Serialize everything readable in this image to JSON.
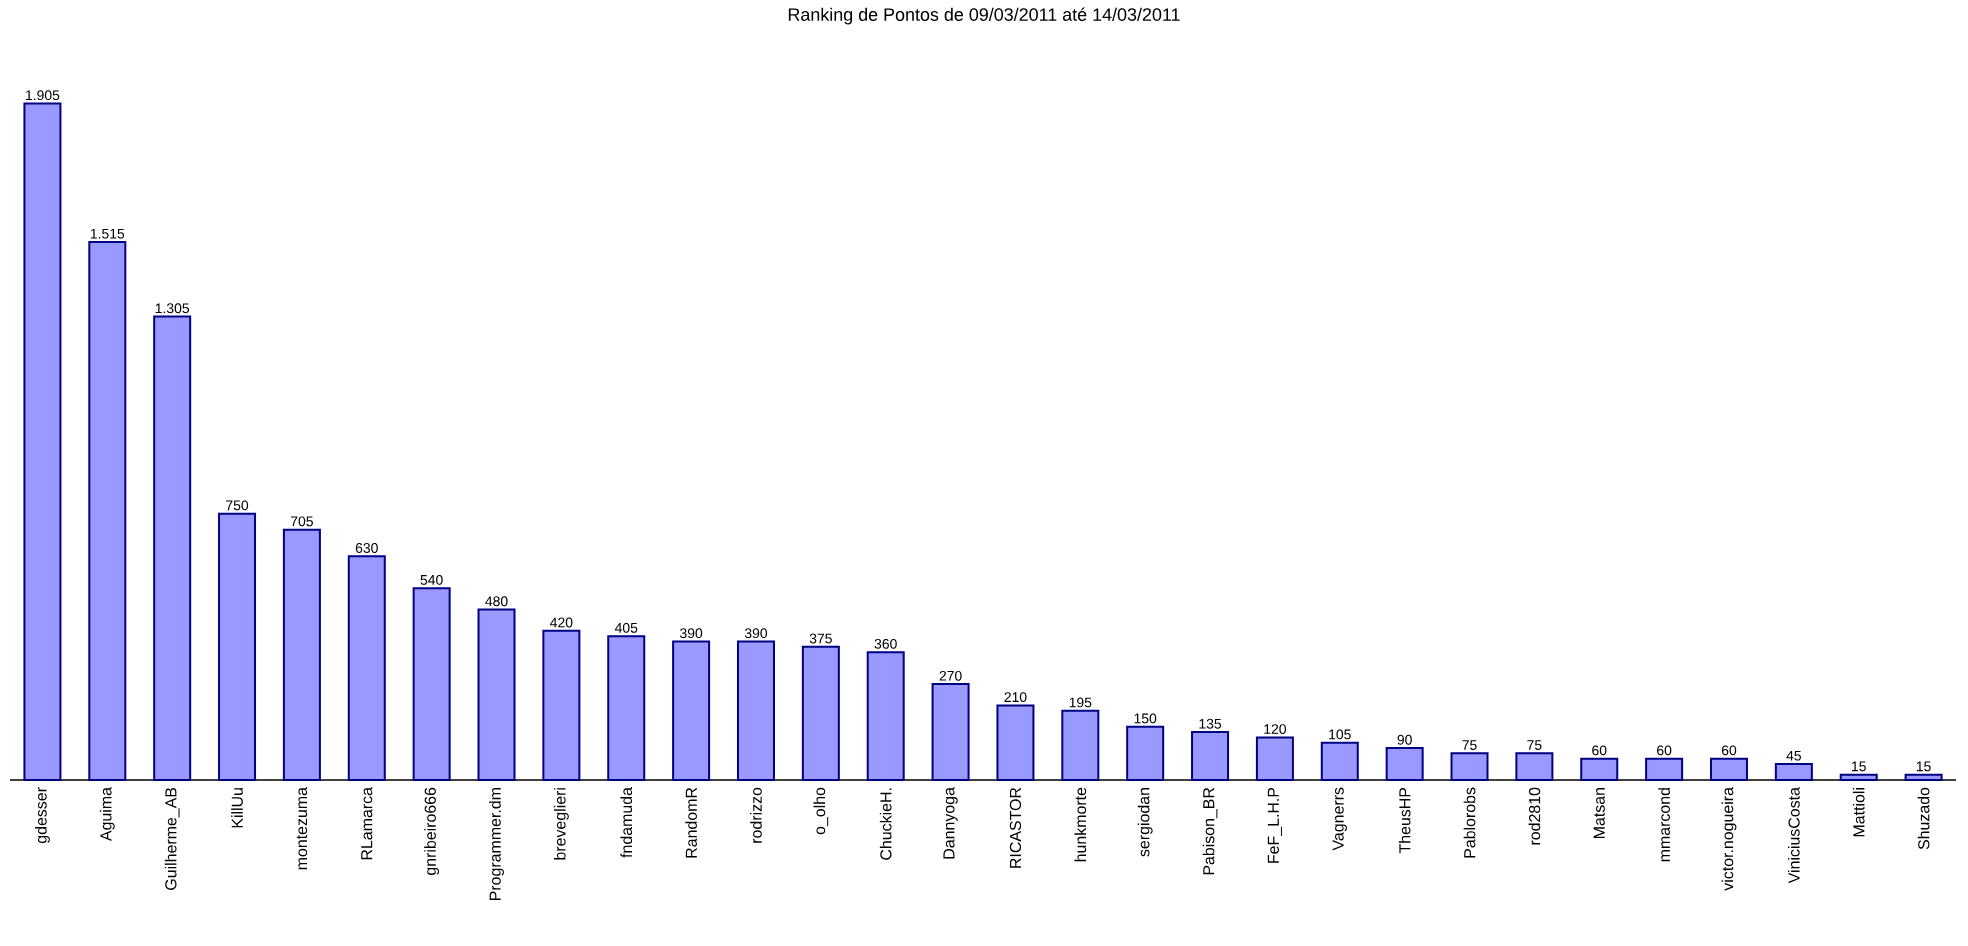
{
  "chart_data": {
    "type": "bar",
    "title": "Ranking de Pontos de 09/03/2011 até 14/03/2011",
    "categories": [
      "gdesser",
      "Aguima",
      "Guilherme_AB",
      "KillUu",
      "montezuma",
      "RLamarca",
      "gnribeiro666",
      "Programmer.dm",
      "breveglieri",
      "fndamuda",
      "RandomR",
      "rodrizzo",
      "o_olho",
      "ChuckieH.",
      "Dannyoga",
      "RICASTOR",
      "hunkmorte",
      "sergiodan",
      "Pabison_BR",
      "FeF_L.H.P",
      "Vagnerrs",
      "TheusHP",
      "Pablorobs",
      "rod2810",
      "Matsan",
      "mmarcond",
      "victor.nogueira",
      "ViniciusCosta",
      "Mattioli",
      "Shuzado"
    ],
    "values": [
      1905,
      1515,
      1305,
      750,
      705,
      630,
      540,
      480,
      420,
      405,
      390,
      390,
      375,
      360,
      270,
      210,
      195,
      150,
      135,
      120,
      105,
      90,
      75,
      75,
      60,
      60,
      60,
      45,
      15,
      15
    ],
    "value_labels": [
      "1.905",
      "1.515",
      "1.305",
      "750",
      "705",
      "630",
      "540",
      "480",
      "420",
      "405",
      "390",
      "390",
      "375",
      "360",
      "270",
      "210",
      "195",
      "150",
      "135",
      "120",
      "105",
      "90",
      "75",
      "75",
      "60",
      "60",
      "60",
      "45",
      "15",
      "15"
    ],
    "color": "#9999ff"
  }
}
